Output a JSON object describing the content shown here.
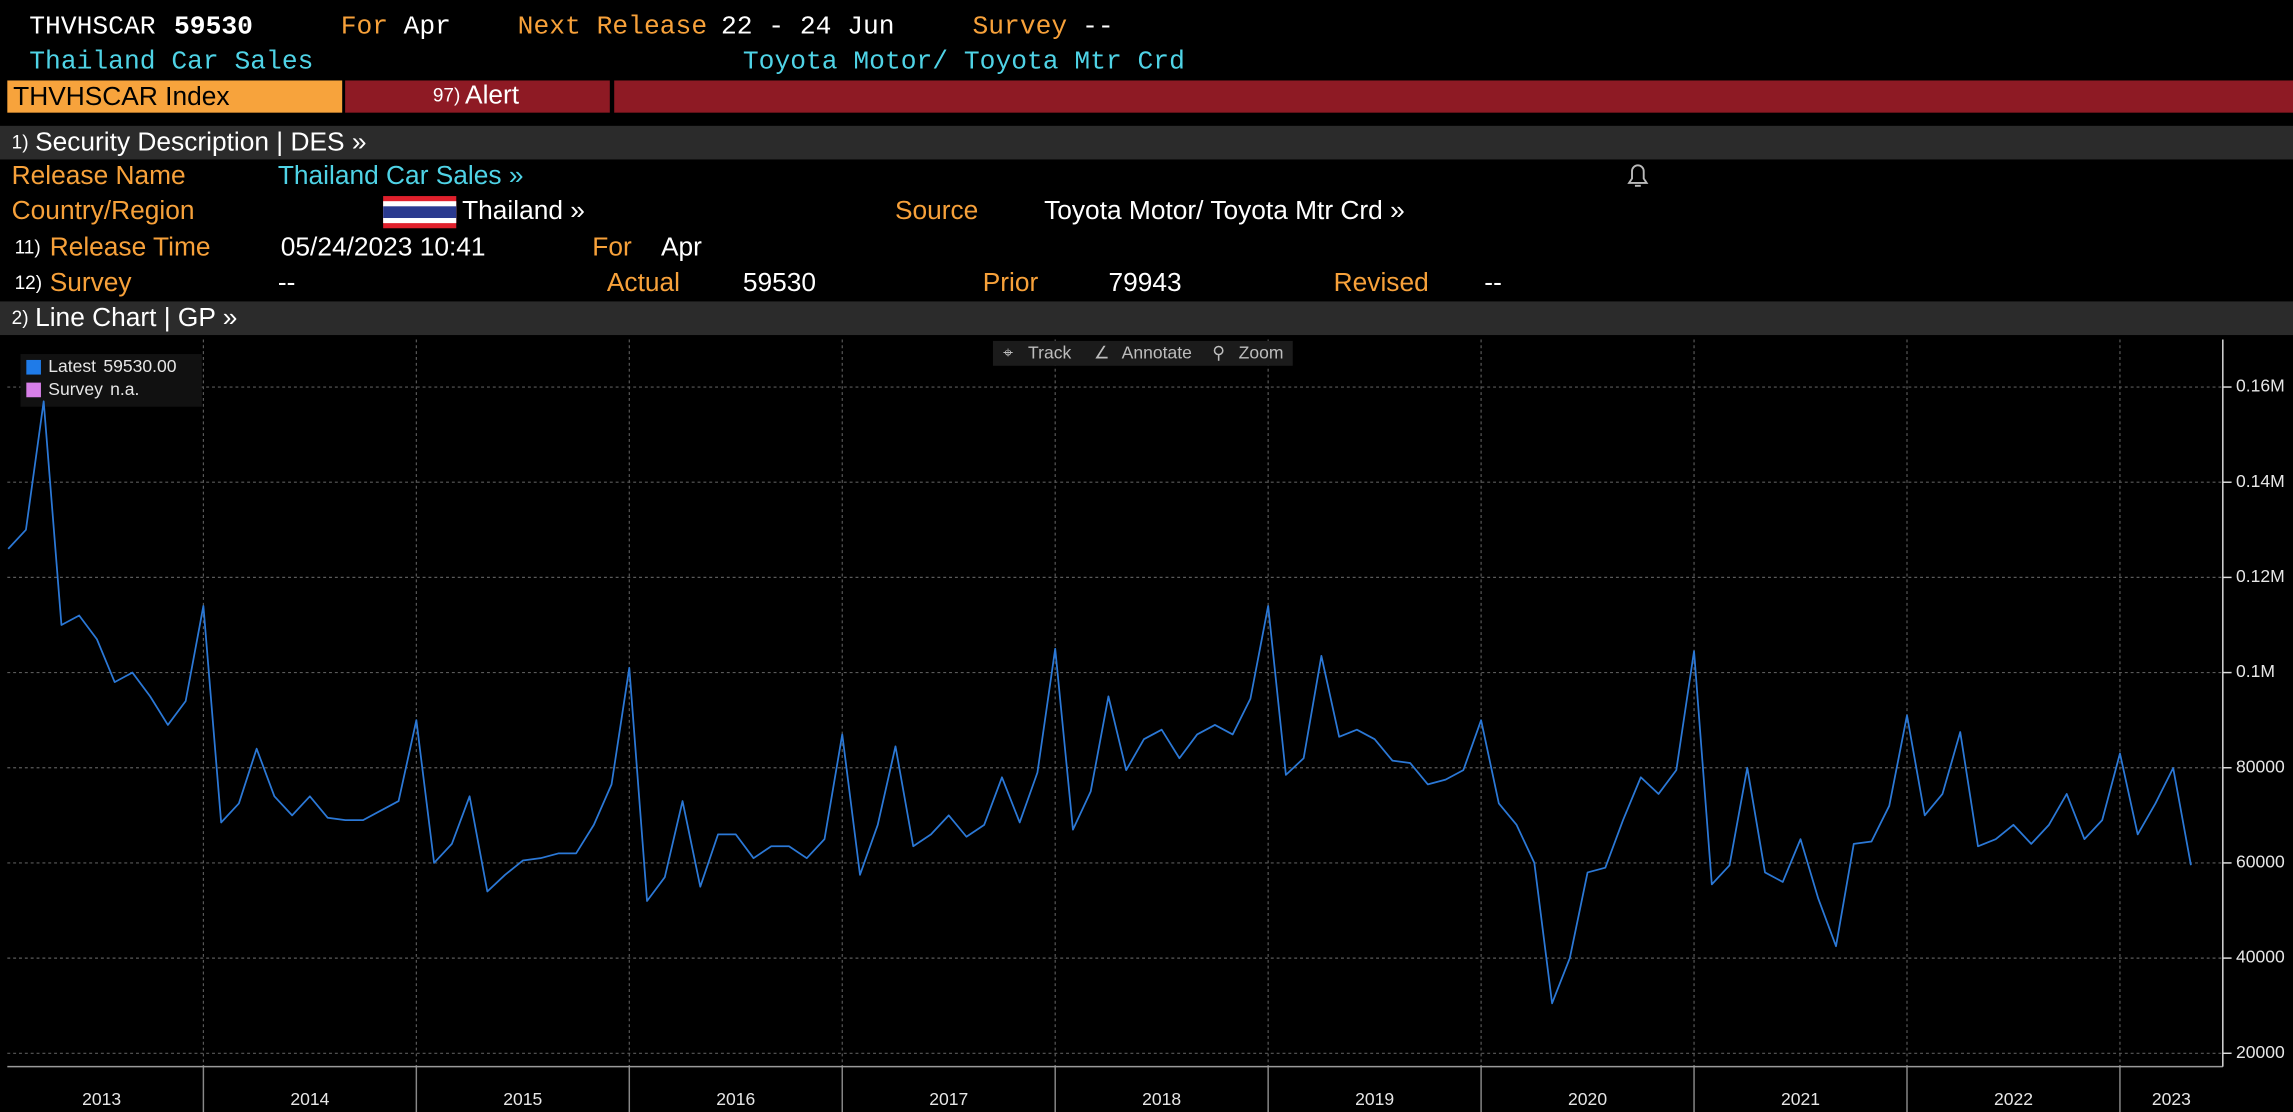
{
  "header": {
    "ticker": "THVHSCAR",
    "last": "59530",
    "for_label": "For",
    "for_value": "Apr",
    "next_release_label": "Next Release",
    "next_release": "22 - 24 Jun",
    "survey_label": "Survey",
    "survey": "--",
    "name": "Thailand Car Sales",
    "source": "Toyota Motor/ Toyota Mtr Crd"
  },
  "tabs": [
    {
      "label": "THVHSCAR Index"
    },
    {
      "number": "97)",
      "label": "Alert"
    }
  ],
  "description": {
    "number": "1)",
    "label": "Security Description | DES »",
    "release_name_label": "Release Name",
    "release_name": "Thailand Car Sales »",
    "country_label": "Country/Region",
    "country": "Thailand »",
    "source_label": "Source",
    "source": "Toyota Motor/ Toyota Mtr Crd »",
    "release_time_number": "11)",
    "release_time_label": "Release Time",
    "release_time": "05/24/2023 10:41",
    "for_label": "For",
    "for_value": "Apr",
    "survey_number": "12)",
    "survey_label": "Survey",
    "survey": "--",
    "actual_label": "Actual",
    "actual": "59530",
    "prior_label": "Prior",
    "prior": "79943",
    "revised_label": "Revised",
    "revised": "--"
  },
  "chart_section": {
    "number": "2)",
    "label": "Line Chart | GP »"
  },
  "toolbar": [
    "Track",
    "Annotate",
    "Zoom"
  ],
  "chart_data": {
    "type": "line",
    "x_labels": [
      "2013",
      "2014",
      "2015",
      "2016",
      "2017",
      "2018",
      "2019",
      "2020",
      "2021",
      "2022",
      "2023"
    ],
    "legend": [
      {
        "label": "Latest",
        "value": "59530.00",
        "color": "#1f7be8"
      },
      {
        "label": "Survey",
        "value": "n.a.",
        "color": "#d77fe8"
      }
    ],
    "series": [
      {
        "color": "#2b78d6",
        "values": [
          126000,
          130000,
          157000,
          110000,
          112000,
          107000,
          98000,
          100000,
          95000,
          89000,
          94000,
          114000,
          68500,
          72500,
          84000,
          74000,
          70000,
          74000,
          69500,
          69000,
          69000,
          71000,
          73000,
          90000,
          60000,
          64000,
          74000,
          54000,
          57500,
          60500,
          61000,
          62000,
          62000,
          68000,
          76500,
          101000,
          52000,
          57000,
          73000,
          55000,
          66000,
          66000,
          61000,
          63500,
          63500,
          61000,
          65000,
          87000,
          57500,
          68000,
          84500,
          63500,
          66000,
          70000,
          65500,
          68000,
          78000,
          68500,
          79000,
          105000,
          67000,
          75000,
          95000,
          79500,
          86000,
          88000,
          82000,
          87000,
          89000,
          87000,
          94500,
          114000,
          78500,
          82000,
          103500,
          86500,
          88000,
          86000,
          81500,
          81000,
          76500,
          77500,
          79500,
          90000,
          72500,
          68000,
          60000,
          30500,
          40000,
          58000,
          59000,
          69000,
          78000,
          74500,
          79500,
          104500,
          55500,
          59500,
          80000,
          58000,
          56000,
          65000,
          52500,
          42500,
          64000,
          64500,
          72000,
          91000,
          70000,
          74500,
          87500,
          63500,
          65000,
          68000,
          64000,
          68000,
          74500,
          65000,
          69000,
          83000,
          66000,
          72500,
          79943,
          59530
        ]
      }
    ],
    "ylim": [
      17500,
      170000
    ],
    "yticks": [
      20000,
      40000,
      60000,
      80000,
      {
        "value": 100000,
        "label": "0.1M"
      },
      {
        "value": 120000,
        "label": "0.12M"
      },
      {
        "value": 140000,
        "label": "0.14M"
      },
      {
        "value": 160000,
        "label": "0.16M"
      }
    ],
    "grid": true
  }
}
